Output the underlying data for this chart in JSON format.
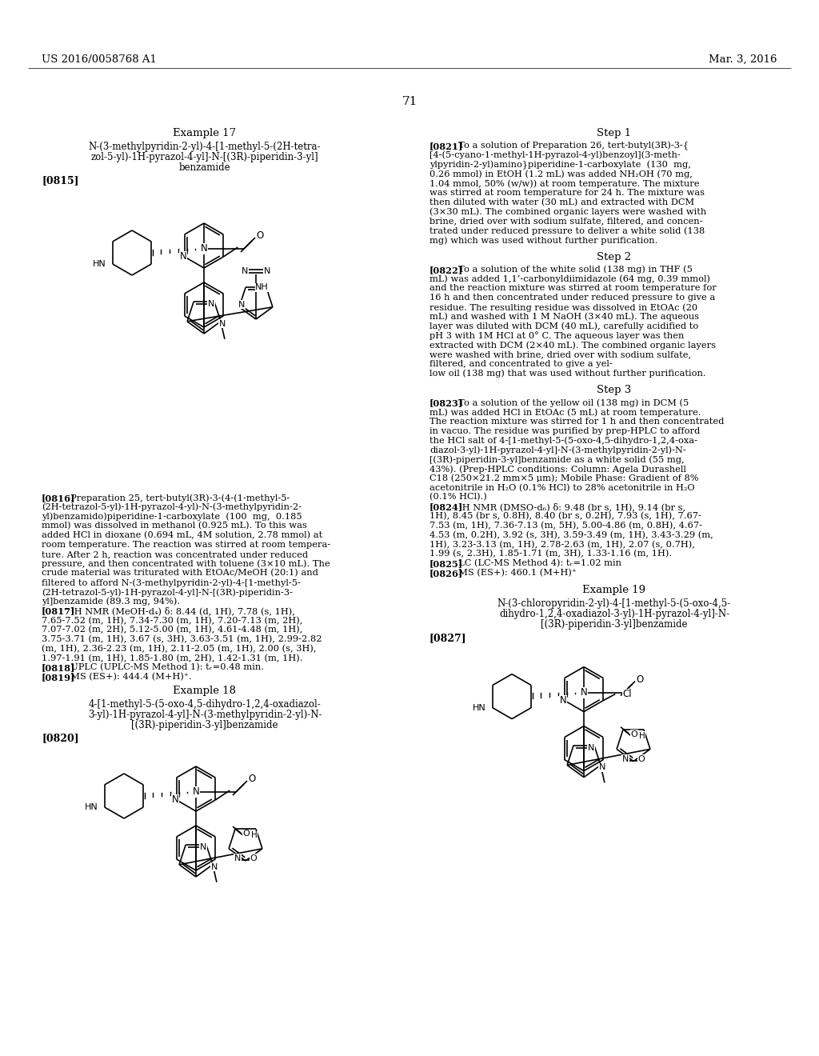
{
  "background_color": "#ffffff",
  "page_header_left": "US 2016/0058768 A1",
  "page_header_right": "Mar. 3, 2016",
  "page_number": "71"
}
